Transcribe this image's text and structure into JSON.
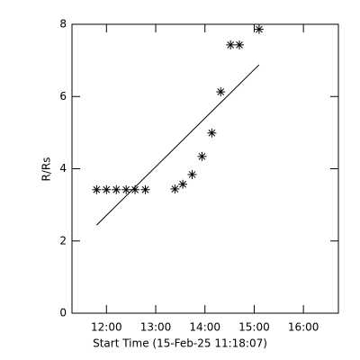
{
  "chart_data": {
    "type": "scatter",
    "xlabel": "Start Time (15-Feb-25 11:18:07)",
    "ylabel": "R/Rs",
    "x": [
      11.8,
      12.0,
      12.2,
      12.4,
      12.58,
      12.79,
      13.39,
      13.55,
      13.74,
      13.94,
      14.14,
      14.32,
      14.52,
      14.7,
      15.1
    ],
    "values": [
      3.42,
      3.42,
      3.42,
      3.42,
      3.42,
      3.42,
      3.44,
      3.57,
      3.84,
      4.34,
      4.99,
      6.13,
      7.43,
      7.43,
      7.86
    ],
    "fit": {
      "x": [
        11.8,
        15.1
      ],
      "values": [
        2.44,
        6.88
      ]
    },
    "color": "#000000",
    "xlim": [
      11.3,
      16.71
    ],
    "ylim": [
      0,
      8
    ],
    "xticks": [
      {
        "value": 12,
        "label": "12:00"
      },
      {
        "value": 13,
        "label": "13:00"
      },
      {
        "value": 14,
        "label": "14:00"
      },
      {
        "value": 15,
        "label": "15:00"
      },
      {
        "value": 16,
        "label": "16:00"
      }
    ],
    "yticks": [
      0,
      2,
      4,
      6,
      8
    ]
  }
}
